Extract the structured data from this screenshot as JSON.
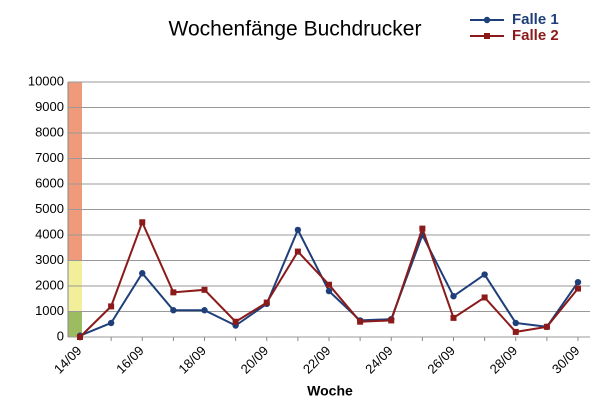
{
  "chart_data": {
    "type": "line",
    "title": "Wochenfänge Buchdrucker",
    "x_label": "Woche",
    "categories": [
      "14/09",
      null,
      "16/09",
      null,
      "18/09",
      null,
      "20/09",
      null,
      "22/09",
      null,
      "24/09",
      null,
      "26/09",
      null,
      "28/09",
      null,
      "30/09"
    ],
    "series": [
      {
        "name": "Falle 1",
        "color": "#1f3f7a",
        "values": [
          50,
          550,
          2500,
          1050,
          1050,
          450,
          1300,
          4200,
          1800,
          650,
          700,
          4000,
          1600,
          2450,
          550,
          400,
          2150
        ]
      },
      {
        "name": "Falle 2",
        "color": "#8b1a1a",
        "values": [
          0,
          1200,
          4500,
          1750,
          1850,
          600,
          1350,
          3350,
          2050,
          600,
          650,
          4250,
          750,
          1550,
          200,
          400,
          1900
        ]
      }
    ],
    "bands": [
      {
        "color": "#9dbb61",
        "range": [
          0,
          1000
        ]
      },
      {
        "color": "#f2ee9a",
        "range": [
          1000,
          3000
        ]
      },
      {
        "color": "#ef9a7a",
        "range": [
          3000,
          10000
        ]
      }
    ],
    "ylim": [
      0,
      10000
    ],
    "yticks": [
      0,
      1000,
      2000,
      3000,
      4000,
      5000,
      6000,
      7000,
      8000,
      9000,
      10000
    ],
    "grid": true,
    "legend": "top-right"
  }
}
